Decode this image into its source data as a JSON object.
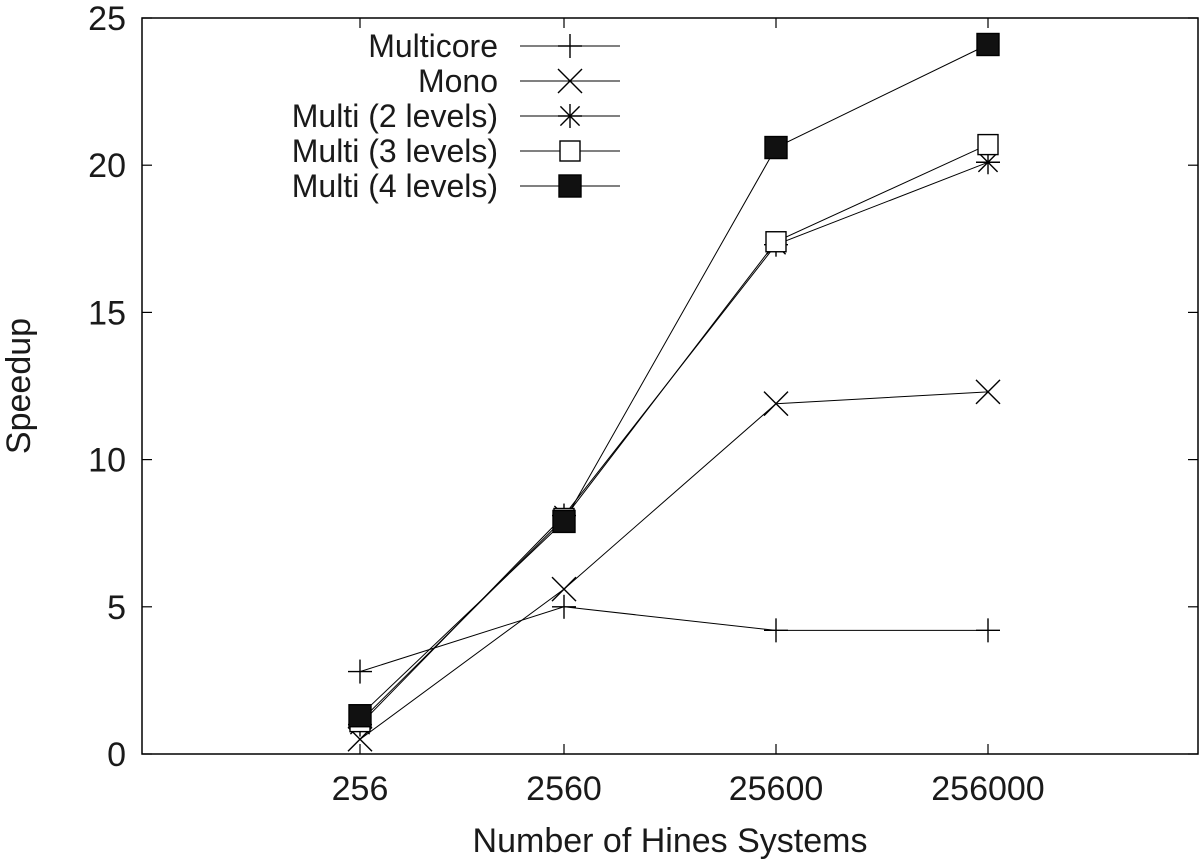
{
  "chart_data": {
    "type": "line",
    "title": "",
    "xlabel": "Number of Hines Systems",
    "ylabel": "Speedup",
    "categories": [
      "256",
      "2560",
      "25600",
      "256000"
    ],
    "ylim": [
      0,
      25
    ],
    "yticks": [
      0,
      5,
      10,
      15,
      20,
      25
    ],
    "grid": false,
    "legend_position": "top-left",
    "series": [
      {
        "name": "Multicore",
        "marker": "plus",
        "values": [
          2.8,
          5.0,
          4.2,
          4.2
        ]
      },
      {
        "name": "Mono",
        "marker": "cross",
        "values": [
          0.5,
          5.6,
          11.9,
          12.3
        ]
      },
      {
        "name": "Multi (2 levels)",
        "marker": "star",
        "values": [
          1.0,
          8.1,
          17.3,
          20.1
        ]
      },
      {
        "name": "Multi (3 levels)",
        "marker": "open-square",
        "values": [
          1.1,
          8.0,
          17.4,
          20.7
        ]
      },
      {
        "name": "Multi (4 levels)",
        "marker": "filled-square",
        "values": [
          1.3,
          7.9,
          20.6,
          24.1
        ]
      }
    ]
  }
}
